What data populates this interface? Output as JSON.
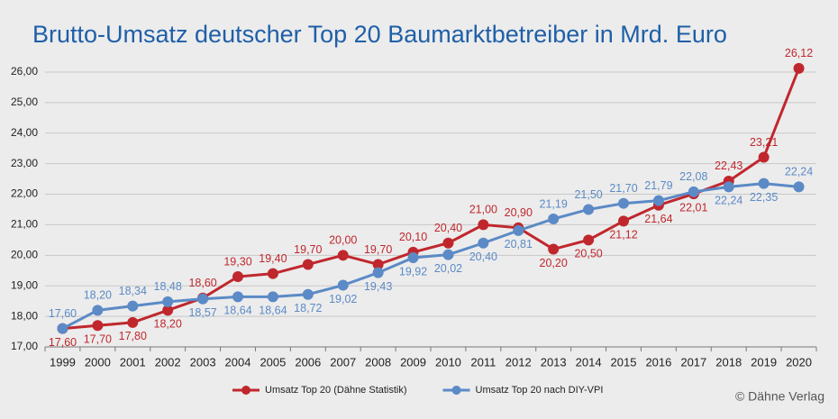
{
  "chart_data": {
    "type": "line",
    "title": "Brutto-Umsatz deutscher Top 20 Baumarktbetreiber in Mrd. Euro",
    "categories": [
      "1999",
      "2000",
      "2001",
      "2002",
      "2003",
      "2004",
      "2005",
      "2006",
      "2007",
      "2008",
      "2009",
      "2010",
      "2011",
      "2012",
      "2013",
      "2014",
      "2015",
      "2016",
      "2017",
      "2018",
      "2019",
      "2020"
    ],
    "series": [
      {
        "name": "Umsatz Top 20 (Dähne Statistik)",
        "color": "#c0272d",
        "values": [
          17.6,
          17.7,
          17.8,
          18.2,
          18.6,
          19.3,
          19.4,
          19.7,
          20.0,
          19.7,
          20.1,
          20.4,
          21.0,
          20.9,
          20.2,
          20.5,
          21.12,
          21.64,
          22.01,
          22.43,
          23.21,
          26.12
        ],
        "value_labels": [
          "17,60",
          "17,70",
          "17,80",
          "18,20",
          "18,60",
          "19,30",
          "19,40",
          "19,70",
          "20,00",
          "19,70",
          "20,10",
          "20,40",
          "21,00",
          "20,90",
          "20,20",
          "20,50",
          "21,12",
          "21,64",
          "22,01",
          "22,43",
          "23,21",
          "26,12"
        ]
      },
      {
        "name": "Umsatz Top 20 nach DIY-VPI",
        "color": "#5b8ac6",
        "values": [
          17.6,
          18.2,
          18.34,
          18.48,
          18.57,
          18.64,
          18.64,
          18.72,
          19.02,
          19.43,
          19.92,
          20.02,
          20.4,
          20.81,
          21.19,
          21.5,
          21.7,
          21.79,
          22.08,
          22.24,
          22.35,
          22.24
        ],
        "value_labels": [
          "17,60",
          "18,20",
          "18,34",
          "18,48",
          "18,57",
          "18,64",
          "18,64",
          "18,72",
          "19,02",
          "19,43",
          "19,92",
          "20,02",
          "20,40",
          "20,81",
          "21,19",
          "21,50",
          "21,70",
          "21,79",
          "22,08",
          "22,24",
          "22,35",
          "22,24"
        ]
      }
    ],
    "ylim": [
      17,
      26.5
    ],
    "yticks": [
      {
        "value": 17,
        "label": "17,00"
      },
      {
        "value": 18,
        "label": "18,00"
      },
      {
        "value": 19,
        "label": "19,00"
      },
      {
        "value": 20,
        "label": "20,00"
      },
      {
        "value": 21,
        "label": "21,00"
      },
      {
        "value": 22,
        "label": "22,00"
      },
      {
        "value": 23,
        "label": "23,00"
      },
      {
        "value": 24,
        "label": "24,00"
      },
      {
        "value": 25,
        "label": "25,00"
      },
      {
        "value": 26,
        "label": "26,00"
      }
    ],
    "grid": true,
    "legend": "bottom",
    "source": "© Dähne Verlag"
  }
}
